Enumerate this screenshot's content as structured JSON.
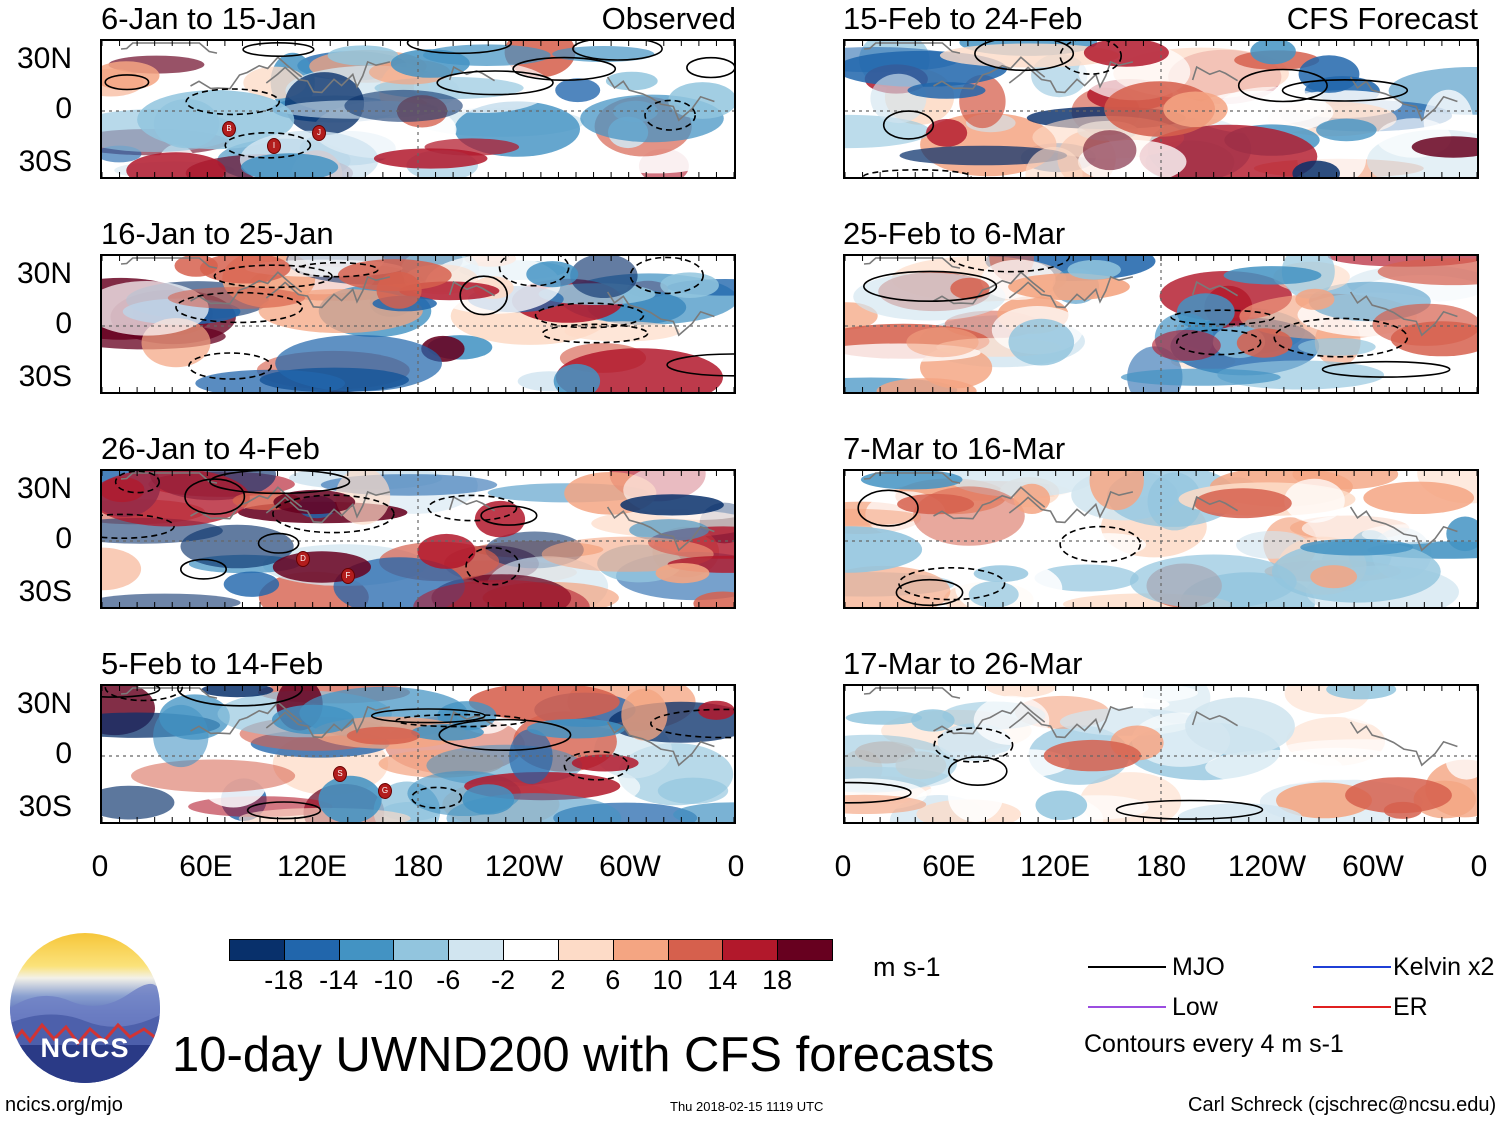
{
  "chart_data": {
    "type": "heatmap",
    "title": "10-day UWND200 with CFS forecasts",
    "variable": "UWND200",
    "units": "m s-1",
    "columns": [
      "Observed",
      "CFS Forecast"
    ],
    "lat_ticks": [
      "30N",
      "0",
      "30S"
    ],
    "lon_ticks": [
      "0",
      "60E",
      "120E",
      "180",
      "120W",
      "60W",
      "0"
    ],
    "color_levels": [
      -18,
      -14,
      -10,
      -6,
      -2,
      2,
      6,
      10,
      14,
      18
    ],
    "colorbar_labels": [
      "-18",
      "-14",
      "-10",
      "-6",
      "-2",
      "2",
      "6",
      "10",
      "14",
      "18"
    ],
    "colors": [
      "#08306b",
      "#2166ac",
      "#4393c3",
      "#92c5de",
      "#d1e5f0",
      "#ffffff",
      "#fddbc7",
      "#f4a582",
      "#d6604d",
      "#b2182b",
      "#67001f"
    ],
    "panels": [
      {
        "title": "6-Jan to 15-Jan",
        "tag": "Observed",
        "storms": [
          "B",
          "I",
          "J"
        ]
      },
      {
        "title": "16-Jan to 25-Jan",
        "tag": "",
        "storms": []
      },
      {
        "title": "26-Jan to 4-Feb",
        "tag": "",
        "storms": [
          "D",
          "F"
        ]
      },
      {
        "title": "5-Feb to 14-Feb",
        "tag": "",
        "storms": [
          "S",
          "G"
        ]
      },
      {
        "title": "15-Feb to 24-Feb",
        "tag": "CFS Forecast",
        "storms": []
      },
      {
        "title": "25-Feb to 6-Mar",
        "tag": "",
        "storms": []
      },
      {
        "title": "7-Mar to 16-Mar",
        "tag": "",
        "storms": []
      },
      {
        "title": "17-Mar to 26-Mar",
        "tag": "",
        "storms": []
      }
    ],
    "legend": [
      {
        "label": "MJO",
        "color": "#000000"
      },
      {
        "label": "Kelvin x2",
        "color": "#1f3fd6"
      },
      {
        "label": "Low",
        "color": "#9b4de0"
      },
      {
        "label": "ER",
        "color": "#e02020"
      }
    ],
    "contour_note": "Contours every 4 m s-1"
  },
  "footer": {
    "logo_text": "NCICS",
    "site": "ncics.org/mjo",
    "timestamp": "Thu 2018-02-15 1119 UTC",
    "author": "Carl Schreck (cjschrec@ncsu.edu)"
  }
}
